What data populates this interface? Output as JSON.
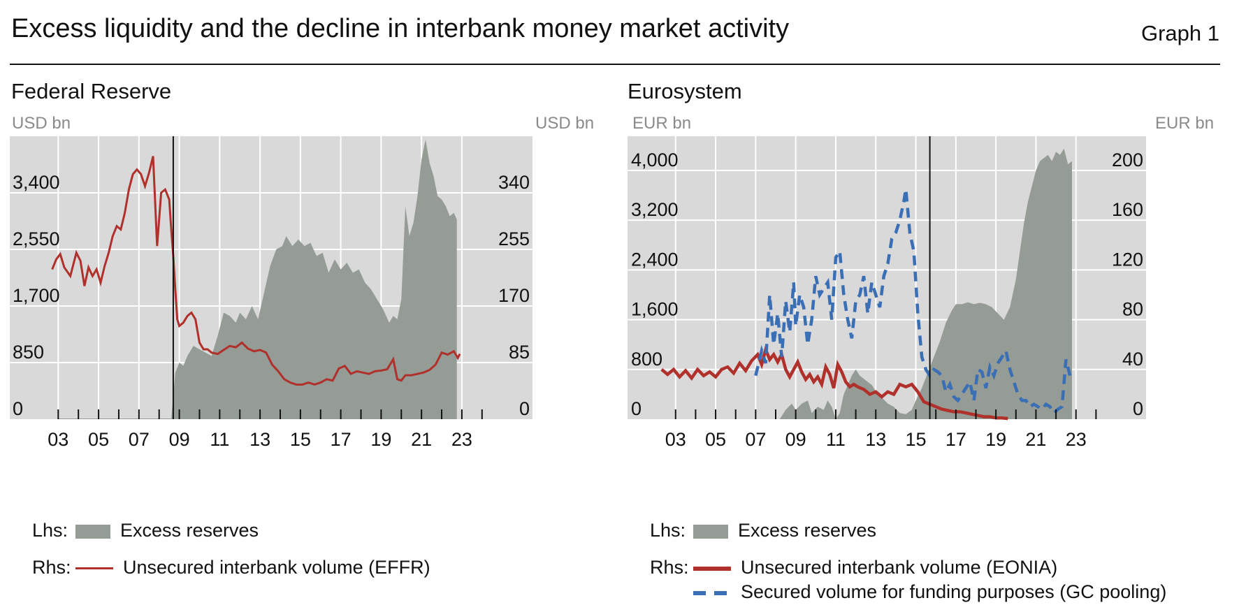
{
  "title": "Excess liquidity and the decline in interbank money market activity",
  "graph_number": "Graph 1",
  "colors": {
    "excess_reserves": "#959c95",
    "unsecured": "#b0302b",
    "secured": "#3a6fb5",
    "plot_background": "#d9d9d9"
  },
  "chart_data": [
    {
      "type": "area",
      "title": "Federal Reserve",
      "lhs_unit": "USD bn",
      "rhs_unit": "USD bn",
      "ylim_lhs": [
        0,
        4250
      ],
      "ylim_rhs": [
        0,
        425
      ],
      "yticks_lhs": [
        "0",
        "850",
        "1,700",
        "2,550",
        "3,400"
      ],
      "yticks_rhs": [
        "0",
        "85",
        "170",
        "255",
        "340"
      ],
      "yticks_lhs_values": [
        0,
        850,
        1700,
        2550,
        3400
      ],
      "yticks_rhs_values": [
        0,
        85,
        170,
        255,
        340
      ],
      "xlim": [
        2000.6,
        2026.5
      ],
      "xticks": [
        "03",
        "05",
        "07",
        "09",
        "11",
        "13",
        "15",
        "17",
        "19",
        "21",
        "23"
      ],
      "xtick_values": [
        2003,
        2005,
        2007,
        2009,
        2011,
        2013,
        2015,
        2017,
        2019,
        2021,
        2023
      ],
      "minor_tick_values": [
        2004,
        2006,
        2008,
        2010,
        2012,
        2014,
        2016,
        2018,
        2020,
        2022,
        2024
      ],
      "vertical_line_x": 2008.7,
      "grid": true,
      "legend_placement": "bottom",
      "legend": [
        {
          "side": "Lhs:",
          "label": "Excess reserves",
          "kind": "area"
        },
        {
          "side": "Rhs:",
          "label": "Unsecured interbank volume (EFFR)",
          "kind": "line"
        }
      ],
      "series": [
        {
          "name": "Excess reserves",
          "axis": "lhs",
          "kind": "area",
          "x": [
            2003,
            2008.6,
            2008.8,
            2009.0,
            2009.2,
            2009.4,
            2009.7,
            2010.0,
            2010.3,
            2010.6,
            2010.9,
            2011.2,
            2011.5,
            2011.8,
            2012.0,
            2012.3,
            2012.6,
            2012.9,
            2013.2,
            2013.5,
            2013.8,
            2014.1,
            2014.3,
            2014.6,
            2014.9,
            2015.2,
            2015.5,
            2015.8,
            2016.1,
            2016.4,
            2016.7,
            2017.0,
            2017.3,
            2017.6,
            2017.9,
            2018.2,
            2018.5,
            2018.8,
            2019.1,
            2019.4,
            2019.6,
            2019.8,
            2020.0,
            2020.2,
            2020.4,
            2020.6,
            2020.8,
            2021.0,
            2021.2,
            2021.4,
            2021.6,
            2021.8,
            2022.0,
            2022.2,
            2022.4,
            2022.6,
            2022.75
          ],
          "y": [
            10,
            10,
            700,
            850,
            800,
            950,
            1100,
            1050,
            1000,
            950,
            1250,
            1600,
            1550,
            1450,
            1600,
            1500,
            1700,
            1500,
            1900,
            2300,
            2550,
            2600,
            2750,
            2600,
            2700,
            2600,
            2650,
            2450,
            2500,
            2200,
            2400,
            2250,
            2350,
            2200,
            2250,
            2050,
            1950,
            1800,
            1650,
            1450,
            1550,
            1500,
            1800,
            3200,
            2750,
            2950,
            3350,
            3900,
            4200,
            3850,
            3650,
            3350,
            3300,
            3200,
            3050,
            3100,
            3000
          ]
        },
        {
          "name": "Unsecured interbank volume (EFFR)",
          "axis": "rhs",
          "kind": "line",
          "x": [
            2002.7,
            2002.9,
            2003.1,
            2003.3,
            2003.6,
            2003.9,
            2004.1,
            2004.3,
            2004.5,
            2004.7,
            2004.9,
            2005.1,
            2005.3,
            2005.5,
            2005.7,
            2005.9,
            2006.1,
            2006.3,
            2006.5,
            2006.7,
            2006.9,
            2007.1,
            2007.3,
            2007.5,
            2007.7,
            2007.9,
            2008.1,
            2008.3,
            2008.5,
            2008.6,
            2008.7,
            2008.8,
            2008.9,
            2009.0,
            2009.2,
            2009.4,
            2009.6,
            2009.8,
            2010.0,
            2010.2,
            2010.4,
            2010.6,
            2010.9,
            2011.2,
            2011.5,
            2011.8,
            2012.1,
            2012.4,
            2012.7,
            2013.0,
            2013.3,
            2013.6,
            2013.9,
            2014.2,
            2014.5,
            2014.8,
            2015.1,
            2015.4,
            2015.7,
            2016.0,
            2016.3,
            2016.6,
            2016.9,
            2017.2,
            2017.5,
            2017.8,
            2018.1,
            2018.4,
            2018.7,
            2019.0,
            2019.3,
            2019.6,
            2019.8,
            2020.0,
            2020.2,
            2020.5,
            2020.8,
            2021.1,
            2021.4,
            2021.7,
            2022.0,
            2022.3,
            2022.6,
            2022.8,
            2022.9
          ],
          "y": [
            225,
            240,
            248,
            228,
            215,
            250,
            238,
            200,
            228,
            215,
            225,
            205,
            230,
            250,
            275,
            290,
            285,
            310,
            345,
            368,
            375,
            368,
            350,
            370,
            395,
            260,
            340,
            345,
            330,
            285,
            245,
            195,
            150,
            140,
            145,
            155,
            160,
            150,
            115,
            105,
            105,
            100,
            98,
            104,
            110,
            108,
            115,
            106,
            102,
            104,
            100,
            82,
            72,
            60,
            55,
            52,
            52,
            55,
            52,
            55,
            60,
            58,
            76,
            80,
            68,
            72,
            70,
            68,
            72,
            73,
            75,
            90,
            60,
            58,
            66,
            66,
            68,
            70,
            74,
            82,
            100,
            97,
            102,
            92,
            98
          ]
        }
      ]
    },
    {
      "type": "area",
      "title": "Eurosystem",
      "lhs_unit": "EUR bn",
      "rhs_unit": "EUR bn",
      "ylim_lhs": [
        0,
        4550
      ],
      "ylim_rhs": [
        0,
        227.5
      ],
      "yticks_lhs": [
        "0",
        "800",
        "1,600",
        "2,400",
        "3,200",
        "4,000"
      ],
      "yticks_rhs": [
        "0",
        "40",
        "80",
        "120",
        "160",
        "200"
      ],
      "yticks_lhs_values": [
        0,
        800,
        1600,
        2400,
        3200,
        4000
      ],
      "yticks_rhs_values": [
        0,
        40,
        80,
        120,
        160,
        200
      ],
      "xlim": [
        2000.6,
        2026.5
      ],
      "xticks": [
        "03",
        "05",
        "07",
        "09",
        "11",
        "13",
        "15",
        "17",
        "19",
        "21",
        "23"
      ],
      "xtick_values": [
        2003,
        2005,
        2007,
        2009,
        2011,
        2013,
        2015,
        2017,
        2019,
        2021,
        2023
      ],
      "minor_tick_values": [
        2004,
        2006,
        2008,
        2010,
        2012,
        2014,
        2016,
        2018,
        2020,
        2022,
        2024
      ],
      "vertical_line_x": 2015.7,
      "grid": true,
      "legend_placement": "bottom",
      "legend": [
        {
          "side": "Lhs:",
          "label": "Excess reserves",
          "kind": "area"
        },
        {
          "side": "Rhs:",
          "label": "Unsecured interbank volume (EONIA)",
          "kind": "line"
        },
        {
          "side": "",
          "label": "Secured volume for funding purposes (GC pooling)",
          "kind": "dash"
        }
      ],
      "series": [
        {
          "name": "Excess reserves",
          "axis": "lhs",
          "kind": "area",
          "x": [
            2008.2,
            2008.5,
            2008.8,
            2009.0,
            2009.3,
            2009.6,
            2009.8,
            2010.1,
            2010.4,
            2010.6,
            2010.8,
            2011.0,
            2011.2,
            2011.4,
            2011.6,
            2011.8,
            2012.0,
            2012.2,
            2012.4,
            2012.6,
            2012.8,
            2013.0,
            2013.3,
            2013.6,
            2013.9,
            2014.2,
            2014.5,
            2014.8,
            2015.0,
            2015.3,
            2015.6,
            2015.9,
            2016.2,
            2016.5,
            2016.8,
            2017.0,
            2017.3,
            2017.6,
            2017.9,
            2018.2,
            2018.5,
            2018.8,
            2019.1,
            2019.4,
            2019.7,
            2020.0,
            2020.2,
            2020.4,
            2020.6,
            2020.8,
            2021.0,
            2021.2,
            2021.4,
            2021.6,
            2021.8,
            2022.0,
            2022.2,
            2022.4,
            2022.6,
            2022.8
          ],
          "y": [
            0,
            150,
            250,
            150,
            250,
            300,
            100,
            200,
            150,
            300,
            200,
            0,
            100,
            400,
            550,
            700,
            800,
            700,
            650,
            600,
            550,
            450,
            350,
            250,
            200,
            100,
            80,
            150,
            300,
            500,
            750,
            1000,
            1250,
            1550,
            1750,
            1850,
            1850,
            1880,
            1850,
            1870,
            1850,
            1800,
            1700,
            1600,
            1800,
            2250,
            2700,
            3150,
            3500,
            3750,
            4000,
            4150,
            4200,
            4250,
            4150,
            4300,
            4250,
            4350,
            4100,
            4150
          ]
        },
        {
          "name": "Unsecured interbank volume (EONIA)",
          "axis": "rhs",
          "kind": "line",
          "x": [
            2002.3,
            2002.6,
            2002.9,
            2003.2,
            2003.5,
            2003.8,
            2004.1,
            2004.4,
            2004.7,
            2005.0,
            2005.3,
            2005.6,
            2005.9,
            2006.2,
            2006.5,
            2006.8,
            2007.1,
            2007.3,
            2007.5,
            2007.7,
            2007.9,
            2008.1,
            2008.3,
            2008.5,
            2008.7,
            2008.9,
            2009.1,
            2009.3,
            2009.5,
            2009.7,
            2009.9,
            2010.1,
            2010.3,
            2010.5,
            2010.7,
            2010.9,
            2011.1,
            2011.3,
            2011.5,
            2011.7,
            2011.9,
            2012.1,
            2012.4,
            2012.7,
            2013.0,
            2013.3,
            2013.6,
            2013.9,
            2014.2,
            2014.5,
            2014.8,
            2015.1,
            2015.4,
            2015.7,
            2016.0,
            2016.3,
            2016.6,
            2016.9,
            2017.2,
            2017.5,
            2017.8,
            2018.1,
            2018.4,
            2018.7,
            2019.0,
            2019.3,
            2019.6
          ],
          "y": [
            40,
            36,
            40,
            34,
            39,
            33,
            40,
            35,
            38,
            34,
            40,
            42,
            37,
            45,
            39,
            47,
            52,
            44,
            56,
            48,
            52,
            46,
            52,
            40,
            34,
            40,
            46,
            38,
            32,
            36,
            30,
            34,
            28,
            42,
            36,
            25,
            44,
            38,
            30,
            26,
            28,
            26,
            24,
            20,
            22,
            18,
            22,
            20,
            28,
            26,
            28,
            22,
            14,
            12,
            10,
            8,
            7,
            6,
            6,
            5,
            4,
            3,
            2,
            2,
            1,
            1,
            0.5
          ]
        },
        {
          "name": "Secured volume for funding purposes (GC pooling)",
          "axis": "rhs",
          "kind": "dashed-line",
          "x": [
            2007.0,
            2007.3,
            2007.5,
            2007.7,
            2007.9,
            2008.1,
            2008.3,
            2008.5,
            2008.7,
            2008.9,
            2009.0,
            2009.2,
            2009.4,
            2009.6,
            2009.8,
            2010.0,
            2010.2,
            2010.4,
            2010.6,
            2010.8,
            2011.0,
            2011.2,
            2011.4,
            2011.6,
            2011.8,
            2012.0,
            2012.2,
            2012.4,
            2012.6,
            2012.8,
            2013.0,
            2013.2,
            2013.4,
            2013.6,
            2013.8,
            2014.0,
            2014.2,
            2014.4,
            2014.5,
            2014.7,
            2014.9,
            2015.1,
            2015.3,
            2015.5,
            2015.7,
            2015.9,
            2016.1,
            2016.3,
            2016.5,
            2016.7,
            2016.9,
            2017.1,
            2017.3,
            2017.5,
            2017.7,
            2017.9,
            2018.1,
            2018.3,
            2018.5,
            2018.7,
            2018.9,
            2019.1,
            2019.3,
            2019.5,
            2019.7,
            2019.9,
            2020.1,
            2020.3,
            2020.5,
            2020.7,
            2020.9,
            2021.1,
            2021.3,
            2021.5,
            2021.7,
            2021.9,
            2022.1,
            2022.3,
            2022.5,
            2022.7
          ],
          "y": [
            35,
            55,
            45,
            100,
            60,
            85,
            50,
            95,
            70,
            110,
            75,
            100,
            90,
            60,
            80,
            115,
            100,
            105,
            110,
            80,
            130,
            135,
            100,
            80,
            65,
            95,
            100,
            115,
            85,
            110,
            100,
            90,
            115,
            125,
            145,
            150,
            160,
            175,
            185,
            150,
            135,
            85,
            50,
            40,
            35,
            40,
            38,
            35,
            22,
            28,
            18,
            15,
            20,
            25,
            30,
            15,
            40,
            38,
            25,
            42,
            35,
            45,
            50,
            55,
            40,
            30,
            20,
            15,
            15,
            10,
            12,
            10,
            8,
            12,
            10,
            5,
            8,
            10,
            48,
            35
          ]
        }
      ]
    }
  ]
}
